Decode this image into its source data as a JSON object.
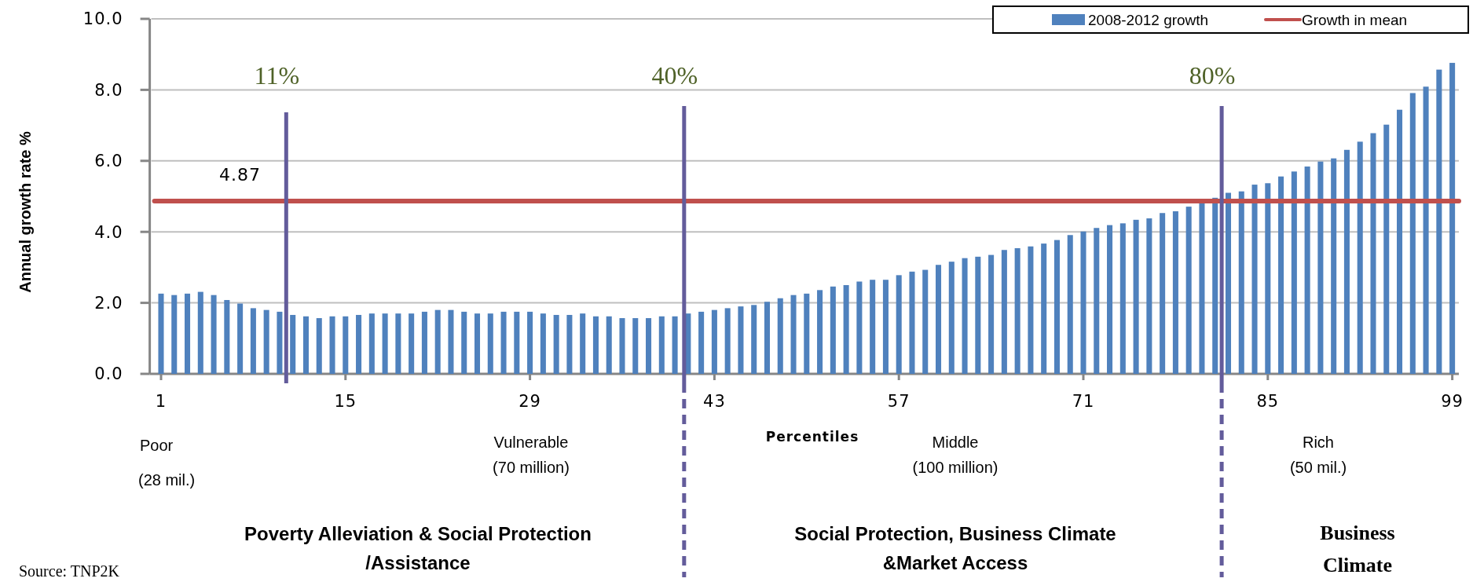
{
  "chart_data": {
    "type": "bar",
    "xlabel": "Percentiles",
    "ylabel": "Annual growth rate %",
    "x": [
      1,
      2,
      3,
      4,
      5,
      6,
      7,
      8,
      9,
      10,
      11,
      12,
      13,
      14,
      15,
      16,
      17,
      18,
      19,
      20,
      21,
      22,
      23,
      24,
      25,
      26,
      27,
      28,
      29,
      30,
      31,
      32,
      33,
      34,
      35,
      36,
      37,
      38,
      39,
      40,
      41,
      42,
      43,
      44,
      45,
      46,
      47,
      48,
      49,
      50,
      51,
      52,
      53,
      54,
      55,
      56,
      57,
      58,
      59,
      60,
      61,
      62,
      63,
      64,
      65,
      66,
      67,
      68,
      69,
      70,
      71,
      72,
      73,
      74,
      75,
      76,
      77,
      78,
      79,
      80,
      81,
      82,
      83,
      84,
      85,
      86,
      87,
      88,
      89,
      90,
      91,
      92,
      93,
      94,
      95,
      96,
      97,
      98,
      99
    ],
    "series": [
      {
        "name": "2008-2012 growth",
        "color": "#4f81bd",
        "values": [
          2.26,
          2.22,
          2.26,
          2.31,
          2.22,
          2.08,
          1.98,
          1.85,
          1.8,
          1.75,
          1.66,
          1.62,
          1.57,
          1.62,
          1.62,
          1.66,
          1.7,
          1.7,
          1.7,
          1.7,
          1.75,
          1.8,
          1.8,
          1.75,
          1.7,
          1.7,
          1.75,
          1.75,
          1.75,
          1.7,
          1.66,
          1.66,
          1.7,
          1.62,
          1.62,
          1.57,
          1.57,
          1.57,
          1.62,
          1.62,
          1.7,
          1.75,
          1.8,
          1.85,
          1.9,
          1.94,
          2.03,
          2.13,
          2.22,
          2.26,
          2.36,
          2.46,
          2.5,
          2.6,
          2.65,
          2.65,
          2.78,
          2.88,
          2.93,
          3.07,
          3.16,
          3.26,
          3.3,
          3.35,
          3.49,
          3.54,
          3.59,
          3.67,
          3.77,
          3.91,
          4.01,
          4.11,
          4.19,
          4.24,
          4.34,
          4.38,
          4.53,
          4.58,
          4.71,
          4.85,
          4.96,
          5.1,
          5.14,
          5.33,
          5.37,
          5.56,
          5.7,
          5.84,
          5.98,
          6.07,
          6.31,
          6.54,
          6.78,
          7.02,
          7.44,
          7.91,
          8.09,
          8.57,
          8.76
        ]
      },
      {
        "name": "Growth in mean",
        "type": "line",
        "color": "#c0504d",
        "x": [
          0.5,
          99.5
        ],
        "values": [
          4.87,
          4.87
        ]
      }
    ],
    "xlim": [
      0.5,
      99.5
    ],
    "xticks": [
      1,
      15,
      29,
      43,
      57,
      71,
      85,
      99
    ],
    "ylim": [
      0,
      10
    ],
    "yticks": [
      {
        "value": 0,
        "label": "0.0"
      },
      {
        "value": 2,
        "label": "2.0"
      },
      {
        "value": 4,
        "label": "4.0"
      },
      {
        "value": 6,
        "label": "6.0"
      },
      {
        "value": 8,
        "label": "8.0"
      },
      {
        "value": 10,
        "label": "10.0"
      }
    ],
    "grid": "y",
    "legend": "top right",
    "ref_lines": [
      {
        "axis": "x",
        "value": 10.5,
        "color": "#635c9b"
      },
      {
        "axis": "x",
        "value": 40.7,
        "color": "#635c9b"
      },
      {
        "axis": "x",
        "value": 81.5,
        "color": "#635c9b"
      }
    ],
    "annotations": [
      {
        "text": "4.87",
        "x": 7,
        "y": 4.87
      },
      "11%",
      "40%",
      "80%",
      "Poor",
      "(28 mil.)",
      "Vulnerable",
      "(70 million)",
      "Middle",
      "(100 million)",
      "Rich",
      "(50 mil.)",
      "Poverty Alleviation & Social Protection /Assistance",
      "Social Protection, Business Climate &Market Access",
      "Business Climate",
      "Source: TNP2K"
    ]
  }
}
